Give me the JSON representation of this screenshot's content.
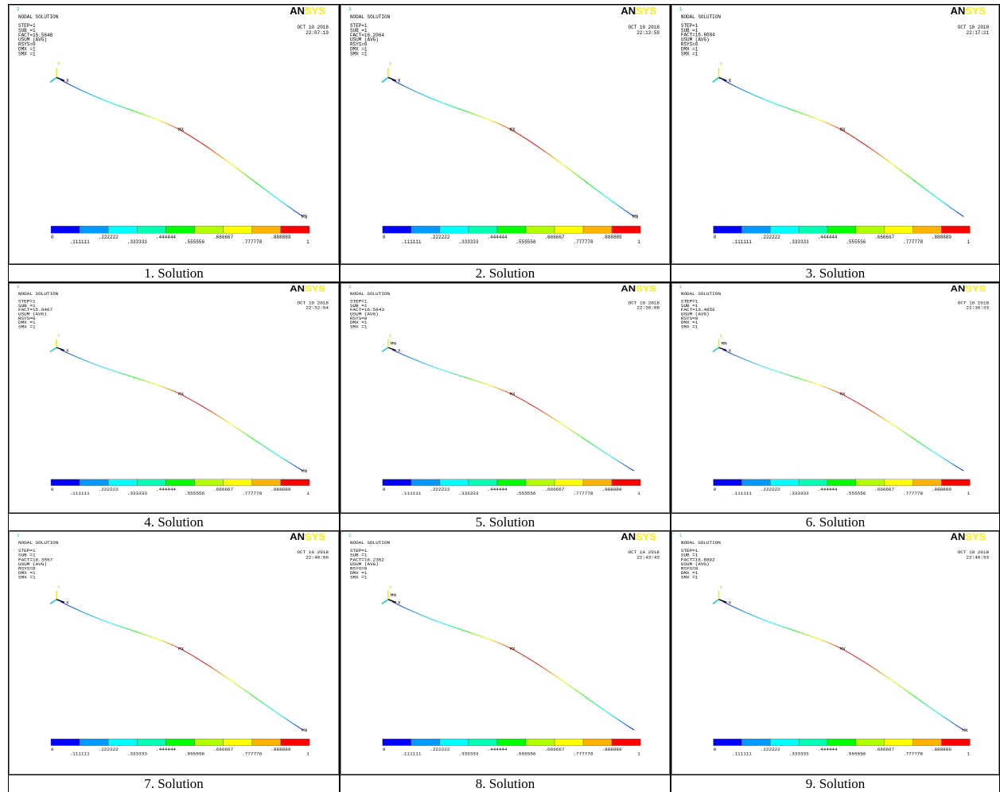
{
  "common": {
    "window_number": "1",
    "title": "NODAL SOLUTION",
    "info_top": [
      "STEP=1",
      "SUB =1"
    ],
    "info_bottom": [
      "USUM    (AVG)",
      "RSYS=0",
      "DMX =1",
      "SMX =1"
    ],
    "date": "OCT 10 2018",
    "logo_a": "AN",
    "logo_b": "SYS",
    "axis_x": "X",
    "axis_y": "Y",
    "mx": "MX",
    "legend": {
      "labels": [
        "0",
        ".111111",
        ".222222",
        ".333333",
        ".444444",
        ".555556",
        ".666667",
        ".777778",
        ".888889",
        "1"
      ],
      "colors": [
        "#0000ff",
        "#0099ff",
        "#00ffff",
        "#00ffb2",
        "#00ff00",
        "#b2ff00",
        "#ffff00",
        "#ffb200",
        "#ff0000"
      ]
    }
  },
  "panels": [
    {
      "fact": "FACT=15.5848",
      "time": "22:07:19",
      "caption": "1. Solution",
      "mn": "MN"
    },
    {
      "fact": "FACT=16.2064",
      "time": "22:13:59",
      "caption": "2. Solution",
      "mn": "MN"
    },
    {
      "fact": "FACT=16.8684",
      "time": "22:17:21",
      "caption": "3. Solution"
    },
    {
      "fact": "FACT=15.9467",
      "time": "22:32:54",
      "caption": "4. Solution",
      "mn": "MN"
    },
    {
      "fact": "FACT=16.5943",
      "time": "22:30:08",
      "caption": "5. Solution",
      "mn": "MN"
    },
    {
      "fact": "FACT=16.4856",
      "time": "22:36:33",
      "caption": "6. Solution",
      "mn": "MN"
    },
    {
      "fact": "FACT=16.3557",
      "time": "22:40:56",
      "caption": "7. Solution",
      "mn": "MN"
    },
    {
      "fact": "FACT=16.2352",
      "time": "22:43:43",
      "caption": "8. Solution",
      "mn": "MN"
    },
    {
      "fact": "FACT=16.8892",
      "time": "22:46:53",
      "caption": "9. Solution",
      "mn": "MN"
    }
  ]
}
